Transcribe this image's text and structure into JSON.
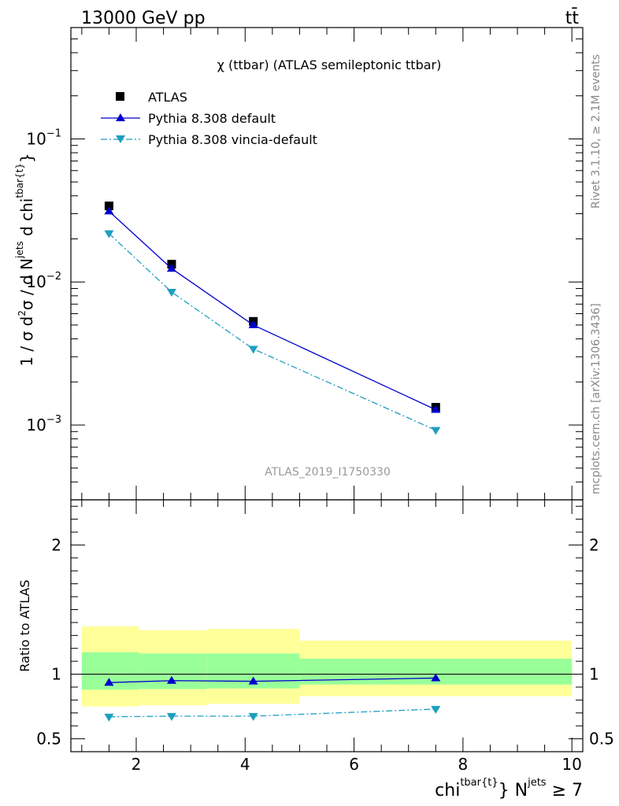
{
  "header": {
    "left": "13000 GeV pp",
    "right": "tt̄"
  },
  "side_labels": {
    "rivet": "Rivet 3.1.10, ≥ 2.1M events",
    "mcplots": "mcplots.cern.ch [arXiv:1306.3436]"
  },
  "colors": {
    "atlas": "#000000",
    "pythia_default": "#0000cc",
    "pythia_vincia": "#1e9ec0",
    "band_inner": "#99ff99",
    "band_outer": "#ffff99"
  },
  "chart_data": [
    {
      "panel": "main",
      "type": "line",
      "title": "χ (ttbar) (ATLAS semileptonic ttbar)",
      "analysis_tag": "ATLAS_2019_I1750330",
      "ylabel": {
        "part1": "1 / σ d",
        "sup2": "2",
        "part2": "σ / d N",
        "sup_jets": "jets",
        "part3": " d chi",
        "sup_tbar": "tbar{t}",
        "part4": "}"
      },
      "xlabel": {
        "part1": "chi",
        "sup1": "tbar{t}",
        "part2": "} N",
        "sup2": "jets",
        "part3": " ≥ 7"
      },
      "yscale": "log",
      "ylim": [
        0.0003,
        0.6
      ],
      "xlim": [
        0.8,
        10.2
      ],
      "yticks": [
        {
          "base": "10",
          "exp": "−1",
          "value": 0.1
        },
        {
          "base": "10",
          "exp": "−2",
          "value": 0.01
        },
        {
          "base": "10",
          "exp": "−3",
          "value": 0.001
        }
      ],
      "legend_placement": "top-left",
      "series": [
        {
          "name": "ATLAS",
          "style": "square",
          "x": [
            1.5,
            2.65,
            4.15,
            7.5
          ],
          "y": [
            0.034,
            0.0133,
            0.0053,
            0.00133
          ]
        },
        {
          "name": "Pythia 8.308 default",
          "style": "solid-triangle-up",
          "x": [
            1.5,
            2.65,
            4.15,
            7.5
          ],
          "y": [
            0.0312,
            0.0124,
            0.005,
            0.00128
          ]
        },
        {
          "name": "Pythia 8.308 vincia-default",
          "style": "dashdot-triangle-down",
          "x": [
            1.5,
            2.65,
            4.15,
            7.5
          ],
          "y": [
            0.0218,
            0.0085,
            0.0034,
            0.00092
          ]
        }
      ]
    },
    {
      "panel": "ratio",
      "type": "line",
      "ylabel": "Ratio to ATLAS",
      "ylim": [
        0.4,
        2.35
      ],
      "xlim": [
        0.8,
        10.2
      ],
      "xticks": [
        2,
        4,
        6,
        8,
        10
      ],
      "xtick_labels": [
        "2",
        "4",
        "6",
        "8",
        "10"
      ],
      "yticks": [
        0.5,
        1,
        2
      ],
      "ytick_labels": [
        "0.5",
        "1",
        "2"
      ],
      "bins": [
        {
          "xlo": 1.0,
          "xhi": 2.05,
          "inner": [
            0.88,
            1.17
          ],
          "outer": [
            0.75,
            1.37
          ]
        },
        {
          "xlo": 2.05,
          "xhi": 3.3,
          "inner": [
            0.885,
            1.16
          ],
          "outer": [
            0.76,
            1.34
          ]
        },
        {
          "xlo": 3.3,
          "xhi": 5.0,
          "inner": [
            0.89,
            1.16
          ],
          "outer": [
            0.77,
            1.35
          ]
        },
        {
          "xlo": 5.0,
          "xhi": 10.0,
          "inner": [
            0.92,
            1.12
          ],
          "outer": [
            0.83,
            1.26
          ]
        }
      ],
      "series": [
        {
          "name": "Pythia 8.308 default",
          "x": [
            1.5,
            2.65,
            4.15,
            7.5
          ],
          "y": [
            0.935,
            0.95,
            0.945,
            0.97
          ]
        },
        {
          "name": "Pythia 8.308 vincia-default",
          "x": [
            1.5,
            2.65,
            4.15,
            7.5
          ],
          "y": [
            0.67,
            0.675,
            0.675,
            0.73
          ]
        }
      ]
    }
  ]
}
